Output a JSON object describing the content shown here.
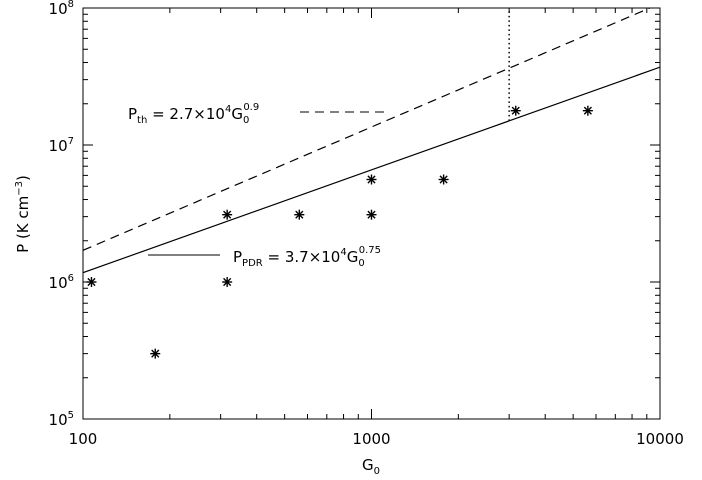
{
  "chart_data": {
    "type": "scatter",
    "title": "",
    "xlabel": {
      "base": "G",
      "sub": "0"
    },
    "ylabel": {
      "pre": "P (K cm",
      "sup": "−3",
      "post": ")"
    },
    "x_scale": "log",
    "y_scale": "log",
    "xlim": [
      100,
      10000
    ],
    "ylim": [
      100000,
      100000000
    ],
    "grid": false,
    "x_ticks": [
      {
        "value": 100,
        "label": "100"
      },
      {
        "value": 1000,
        "label": "1000"
      },
      {
        "value": 10000,
        "label": "10000"
      }
    ],
    "y_ticks": [
      {
        "value": 100000,
        "base": "10",
        "exp": "5"
      },
      {
        "value": 1000000,
        "base": "10",
        "exp": "6"
      },
      {
        "value": 10000000,
        "base": "10",
        "exp": "7"
      },
      {
        "value": 100000000,
        "base": "10",
        "exp": "8"
      }
    ],
    "points": [
      {
        "x": 107,
        "y": 1000000
      },
      {
        "x": 178,
        "y": 300000
      },
      {
        "x": 316,
        "y": 1000000
      },
      {
        "x": 316,
        "y": 3100000
      },
      {
        "x": 562,
        "y": 3100000
      },
      {
        "x": 1000,
        "y": 3100000
      },
      {
        "x": 1000,
        "y": 5600000
      },
      {
        "x": 1778,
        "y": 5600000
      },
      {
        "x": 3162,
        "y": 17800000
      },
      {
        "x": 5623,
        "y": 17800000
      }
    ],
    "fit_lines": [
      {
        "coef": 37000,
        "exp": 0.75,
        "style": "solid"
      },
      {
        "coef": 27000,
        "exp": 0.9,
        "style": "dashed"
      }
    ],
    "vertical_marker": {
      "x": 3000,
      "y_from": 15000000,
      "y_to": 100000000,
      "style": "dotted"
    },
    "annotations": [
      {
        "id": "pth",
        "base": "P",
        "sub": "th",
        "eq": " = 2.7×10",
        "exp": "4",
        "g": "G",
        "gsub": "0",
        "gsup": "0.9"
      },
      {
        "id": "ppdr",
        "base": "P",
        "sub": "PDR",
        "eq": " = 3.7×10",
        "exp": "4",
        "g": "G",
        "gsub": "0",
        "gsup": "0.75"
      }
    ]
  }
}
